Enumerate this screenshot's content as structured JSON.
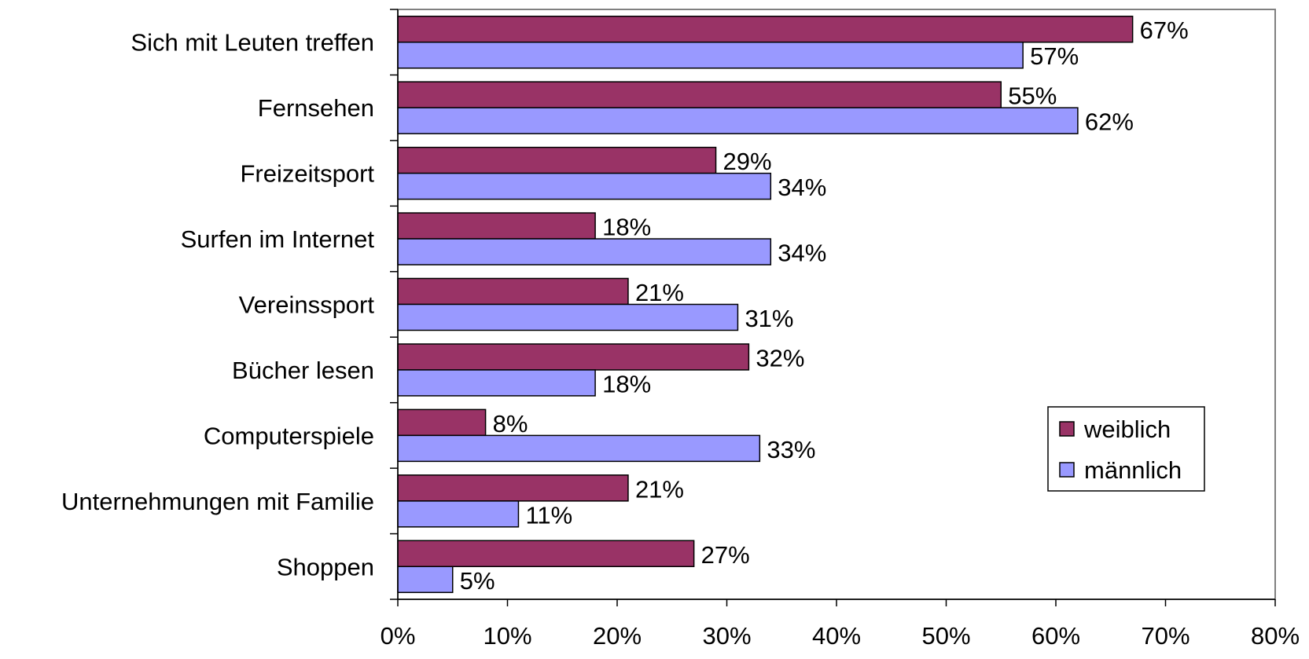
{
  "chart_data": {
    "type": "bar",
    "orientation": "horizontal",
    "categories": [
      "Sich mit Leuten treffen",
      "Fernsehen",
      "Freizeitsport",
      "Surfen im Internet",
      "Vereinssport",
      "Bücher lesen",
      "Computerspiele",
      "Unternehmungen mit Familie",
      "Shoppen"
    ],
    "series": [
      {
        "name": "weiblich",
        "color": "#993366",
        "values": [
          67,
          55,
          29,
          18,
          21,
          32,
          8,
          21,
          27
        ],
        "labels": [
          "67%",
          "55%",
          "29%",
          "18%",
          "21%",
          "32%",
          "8%",
          "21%",
          "27%"
        ]
      },
      {
        "name": "männlich",
        "color": "#9999ff",
        "values": [
          57,
          62,
          34,
          34,
          31,
          18,
          33,
          11,
          5
        ],
        "labels": [
          "57%",
          "62%",
          "34%",
          "34%",
          "31%",
          "18%",
          "33%",
          "11%",
          "5%"
        ]
      }
    ],
    "xlim": [
      0,
      80
    ],
    "xticks": [
      0,
      10,
      20,
      30,
      40,
      50,
      60,
      70,
      80
    ],
    "xtick_labels": [
      "0%",
      "10%",
      "20%",
      "30%",
      "40%",
      "50%",
      "60%",
      "70%",
      "80%"
    ],
    "unit": "%",
    "grid": false,
    "legend_position": "right-lower"
  }
}
